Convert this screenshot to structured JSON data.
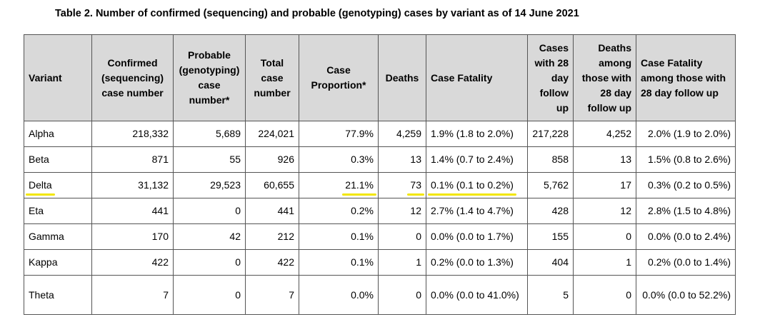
{
  "caption": "Table 2. Number of confirmed (sequencing) and probable (genotyping) cases by variant as of 14 June 2021",
  "headers": {
    "variant": "Variant",
    "confirmed": "Confirmed (sequencing) case number",
    "probable": "Probable (genotyping) case number*",
    "total": "Total case number",
    "proportion": "Case Proportion*",
    "deaths": "Deaths",
    "fatality": "Case Fatality",
    "followup_cases": "Cases with 28 day follow up",
    "followup_deaths": "Deaths among those with 28 day follow up",
    "followup_fatality": "Case Fatality among those with 28 day follow up"
  },
  "rows": [
    {
      "variant": "Alpha",
      "confirmed": "218,332",
      "probable": "5,689",
      "total": "224,021",
      "proportion": "77.9%",
      "deaths": "4,259",
      "fatality": "1.9% (1.8 to 2.0%)",
      "followup_cases": "217,228",
      "followup_deaths": "4,252",
      "followup_fatality": "2.0% (1.9 to 2.0%)"
    },
    {
      "variant": "Beta",
      "confirmed": "871",
      "probable": "55",
      "total": "926",
      "proportion": "0.3%",
      "deaths": "13",
      "fatality": "1.4% (0.7 to 2.4%)",
      "followup_cases": "858",
      "followup_deaths": "13",
      "followup_fatality": "1.5% (0.8 to 2.6%)"
    },
    {
      "variant": "Delta",
      "confirmed": "31,132",
      "probable": "29,523",
      "total": "60,655",
      "proportion": "21.1%",
      "deaths": "73",
      "fatality": "0.1% (0.1 to 0.2%)",
      "followup_cases": "5,762",
      "followup_deaths": "17",
      "followup_fatality": "0.3% (0.2 to 0.5%)"
    },
    {
      "variant": "Eta",
      "confirmed": "441",
      "probable": "0",
      "total": "441",
      "proportion": "0.2%",
      "deaths": "12",
      "fatality": "2.7% (1.4 to 4.7%)",
      "followup_cases": "428",
      "followup_deaths": "12",
      "followup_fatality": "2.8% (1.5 to 4.8%)"
    },
    {
      "variant": "Gamma",
      "confirmed": "170",
      "probable": "42",
      "total": "212",
      "proportion": "0.1%",
      "deaths": "0",
      "fatality": "0.0% (0.0 to 1.7%)",
      "followup_cases": "155",
      "followup_deaths": "0",
      "followup_fatality": "0.0% (0.0 to 2.4%)"
    },
    {
      "variant": "Kappa",
      "confirmed": "422",
      "probable": "0",
      "total": "422",
      "proportion": "0.1%",
      "deaths": "1",
      "fatality": "0.2% (0.0 to 1.3%)",
      "followup_cases": "404",
      "followup_deaths": "1",
      "followup_fatality": "0.2% (0.0 to 1.4%)"
    },
    {
      "variant": "Theta",
      "confirmed": "7",
      "probable": "0",
      "total": "7",
      "proportion": "0.0%",
      "deaths": "0",
      "fatality": "0.0% (0.0 to 41.0%)",
      "followup_cases": "5",
      "followup_deaths": "0",
      "followup_fatality": "0.0% (0.0 to 52.2%)"
    }
  ],
  "highlight": {
    "row": "Delta",
    "columns": [
      "variant",
      "proportion",
      "deaths",
      "fatality"
    ],
    "color": "#f2e600"
  }
}
